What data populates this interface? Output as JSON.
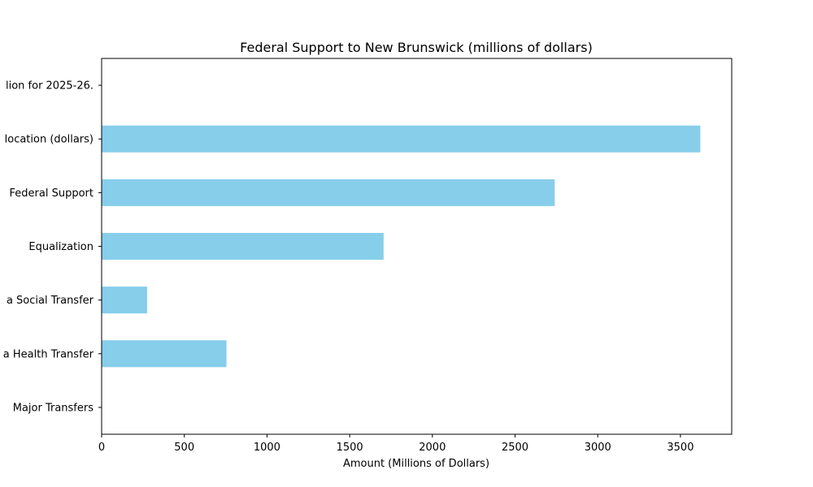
{
  "chart_data": {
    "type": "bar",
    "orientation": "horizontal",
    "title": "Federal Support to New Brunswick (millions of dollars)",
    "xlabel": "Amount (Millions of Dollars)",
    "ylabel": "",
    "xlim": [
      0,
      3810
    ],
    "xticks": [
      0,
      500,
      1000,
      1500,
      2000,
      2500,
      3000,
      3500
    ],
    "categories": [
      "Major Transfers",
      "a Health Transfer",
      "a Social Transfer",
      "Equalization",
      " Federal Support",
      "location (dollars)",
      "lion for 2025-26."
    ],
    "values": [
      0,
      755,
      275,
      1705,
      2740,
      3620,
      0
    ],
    "bar_color": "#87ceeb",
    "grid": false,
    "legend": "none"
  }
}
